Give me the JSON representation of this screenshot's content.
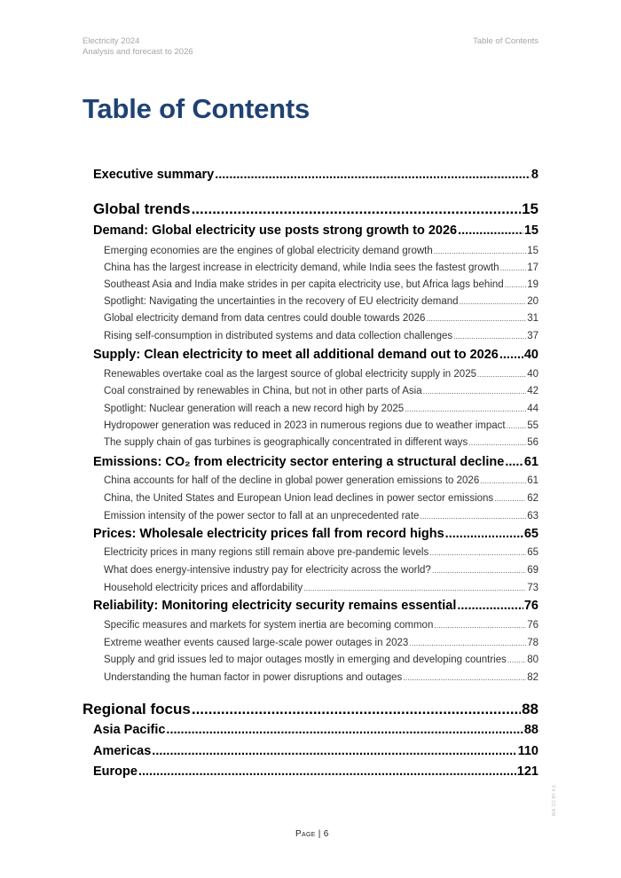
{
  "header": {
    "report": "Electricity 2024",
    "subtitle": "Analysis and forecast to 2026",
    "section": "Table of Contents"
  },
  "title": "Table of Contents",
  "toc": [
    {
      "level": 2,
      "label": "Executive summary",
      "page": "8"
    },
    {
      "level": 1,
      "label": "Global trends",
      "page": "15"
    },
    {
      "level": 2,
      "label": "Demand: Global electricity use posts strong growth to 2026",
      "page": "15"
    },
    {
      "level": 3,
      "label": "Emerging economies are the engines of global electricity demand growth",
      "page": "15"
    },
    {
      "level": 3,
      "label": "China has the largest increase in electricity demand, while India sees the fastest growth",
      "page": "17"
    },
    {
      "level": 3,
      "label": "Southeast Asia and India make strides in per capita electricity use, but Africa lags behind",
      "page": "19"
    },
    {
      "level": 3,
      "label": "Spotlight: Navigating the uncertainties in the recovery of EU electricity demand",
      "page": "20"
    },
    {
      "level": 3,
      "label": "Global electricity demand from data centres could double towards 2026",
      "page": "31"
    },
    {
      "level": 3,
      "label": "Rising self-consumption in distributed systems and data collection challenges",
      "page": "37"
    },
    {
      "level": 2,
      "label": "Supply: Clean electricity to meet all additional demand out to 2026",
      "page": "40"
    },
    {
      "level": 3,
      "label": "Renewables overtake coal as the largest source of global electricity supply in 2025",
      "page": "40"
    },
    {
      "level": 3,
      "label": "Coal constrained by renewables in China, but not in other parts of Asia",
      "page": "42"
    },
    {
      "level": 3,
      "label": "Spotlight: Nuclear generation will reach a new record high by 2025",
      "page": "44"
    },
    {
      "level": 3,
      "label": "Hydropower generation was reduced in 2023 in numerous regions due to weather impact",
      "page": "55"
    },
    {
      "level": 3,
      "label": "The supply chain of gas turbines is geographically concentrated in different ways",
      "page": "56"
    },
    {
      "level": 2,
      "label": "Emissions: CO₂ from electricity sector entering a structural decline",
      "page": "61"
    },
    {
      "level": 3,
      "label": "China accounts for half of the decline in global power generation emissions to 2026",
      "page": "61"
    },
    {
      "level": 3,
      "label": "China, the United States and European Union lead declines in power sector emissions",
      "page": "62"
    },
    {
      "level": 3,
      "label": "Emission intensity of the power sector to fall at an unprecedented rate",
      "page": "63"
    },
    {
      "level": 2,
      "label": "Prices: Wholesale electricity prices fall from record highs",
      "page": "65"
    },
    {
      "level": 3,
      "label": "Electricity prices in many regions still remain above pre-pandemic levels",
      "page": "65"
    },
    {
      "level": 3,
      "label": "What does energy-intensive industry pay for electricity across the world?",
      "page": "69"
    },
    {
      "level": 3,
      "label": "Household electricity prices and affordability",
      "page": "73"
    },
    {
      "level": 2,
      "label": "Reliability: Monitoring electricity security remains essential",
      "page": "76"
    },
    {
      "level": 3,
      "label": "Specific measures and markets for system inertia are becoming common",
      "page": "76"
    },
    {
      "level": 3,
      "label": "Extreme weather events caused large-scale power outages in 2023",
      "page": "78"
    },
    {
      "level": 3,
      "label": "Supply and grid issues led to major outages mostly in emerging and developing countries",
      "page": "80"
    },
    {
      "level": 3,
      "label": "Understanding the human factor in power disruptions and outages",
      "page": "82"
    },
    {
      "level": 0,
      "label": "Regional focus",
      "page": "88"
    },
    {
      "level": 2,
      "label": "Asia Pacific",
      "page": "88"
    },
    {
      "level": 2,
      "label": "Americas",
      "page": "110"
    },
    {
      "level": 2,
      "label": "Europe",
      "page": "121"
    }
  ],
  "footer": {
    "page_label": "Page | 6"
  },
  "watermark": "IEA. CC BY 4.0."
}
